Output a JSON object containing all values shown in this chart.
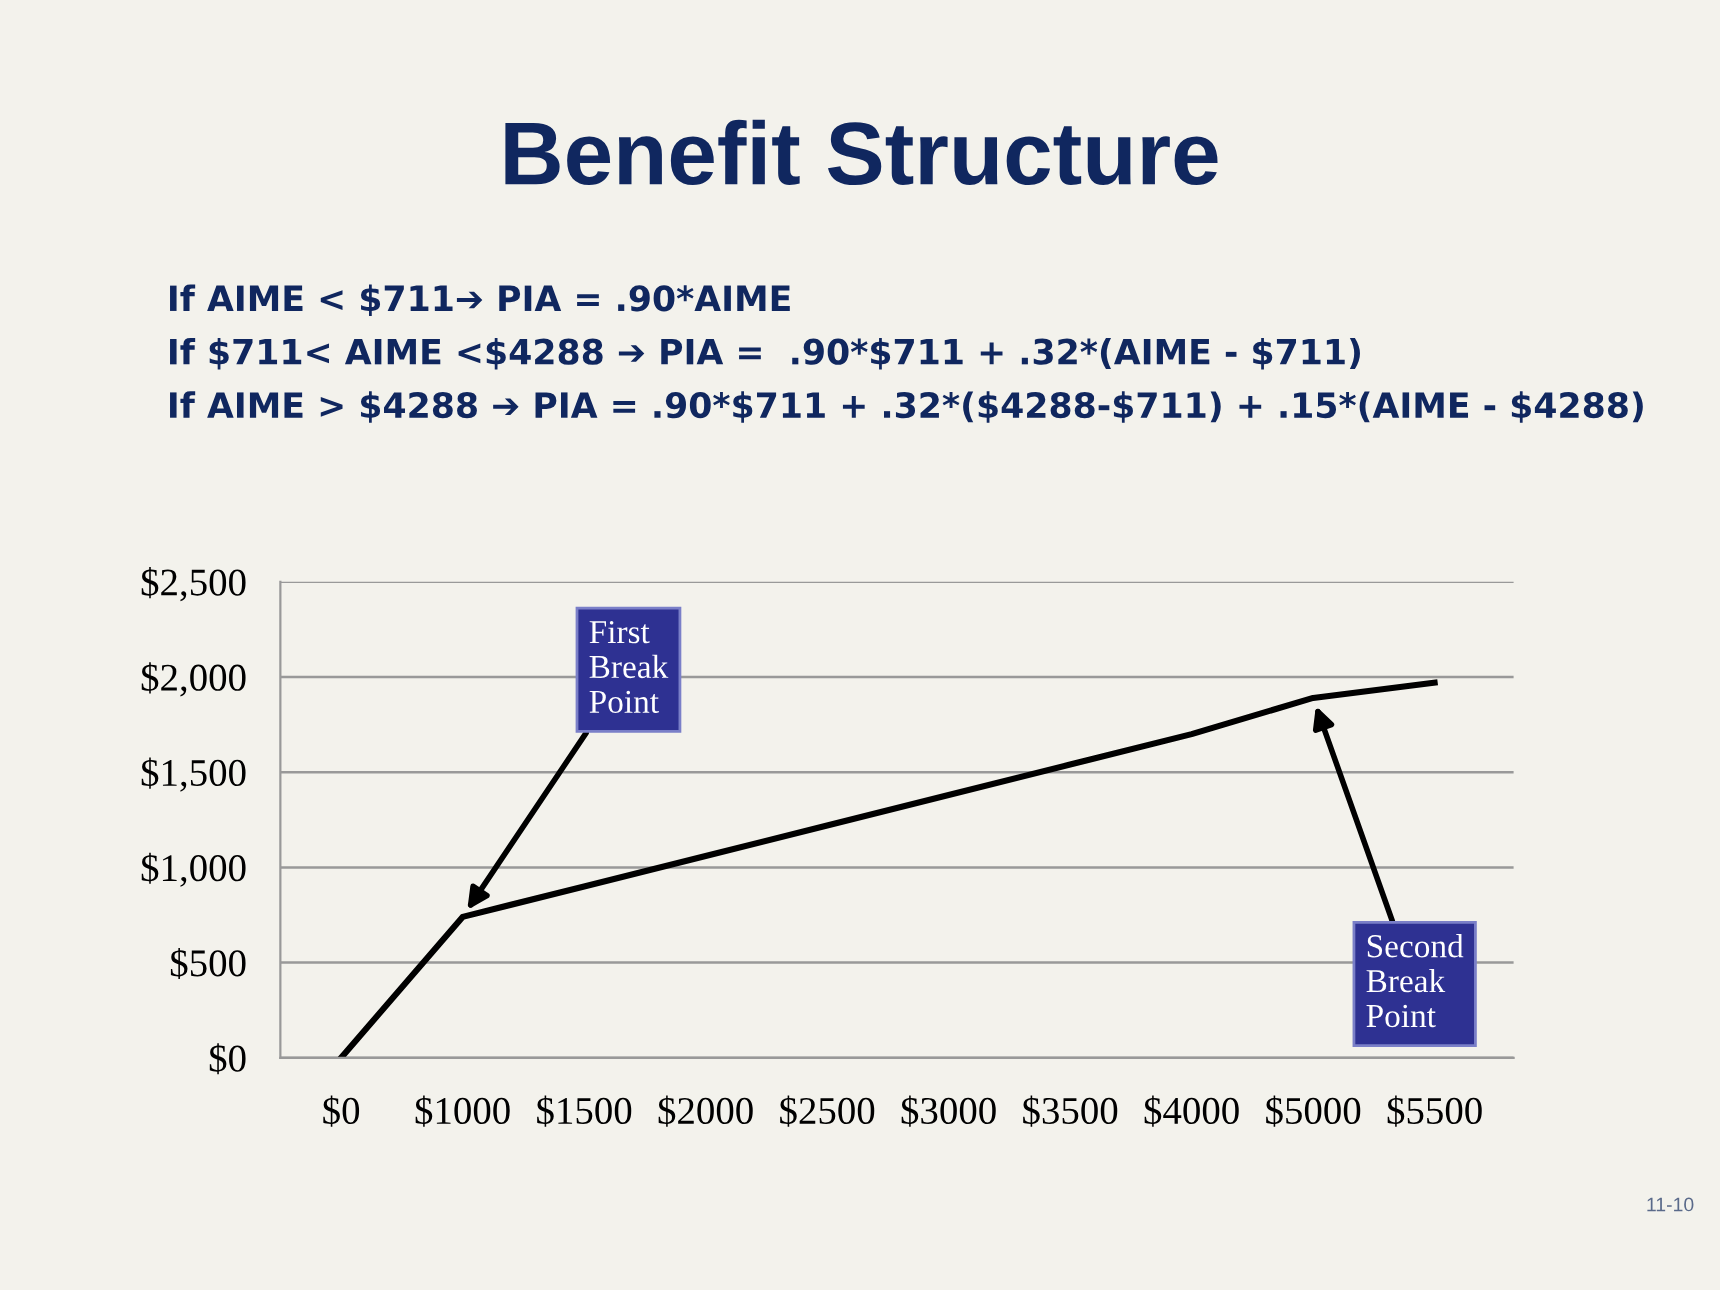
{
  "chart_data": {
    "type": "line",
    "title": "Benefit Structure",
    "subtitle": "If AIME < $711➔ PIA = .90*AIME\nIf $711< AIME <$4288 ➔ PIA =  .90*$711 + .32*(AIME - $711)\nIf AIME > $4288 ➔ PIA = .90*$711 + .32*($4288-$711) + .15*(AIME - $4288)",
    "categories": [
      "$0",
      "$1000",
      "$1500",
      "$2000",
      "$2500",
      "$3000",
      "$3500",
      "$4000",
      "$5000",
      "$5500"
    ],
    "series": [
      {
        "color": "#000000",
        "values": [
          0,
          740,
          900,
          1060,
          1220,
          1380,
          1540,
          1700,
          1890,
          1970
        ]
      }
    ],
    "ylim": [
      0,
      2500
    ],
    "yticks": [
      {
        "value": 0,
        "label": "$0"
      },
      {
        "value": 500,
        "label": "$500"
      },
      {
        "value": 1000,
        "label": "$1,000"
      },
      {
        "value": 1500,
        "label": "$1,500"
      },
      {
        "value": 2000,
        "label": "$2,000"
      },
      {
        "value": 2500,
        "label": "$2,500"
      }
    ],
    "grid": "y",
    "legend": false,
    "marker": "none",
    "line_style": "solid",
    "annotations": [
      {
        "text": "First\nBreak\nPoint",
        "x": "$1000",
        "y": 740
      },
      {
        "text": "Second\nBreak\nPoint",
        "x": "$5000",
        "y": 1890
      },
      "11-10"
    ]
  }
}
